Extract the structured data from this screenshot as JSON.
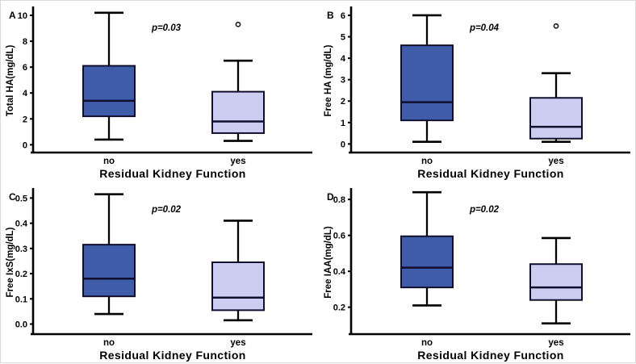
{
  "figure": {
    "background": "#ffffff",
    "frame_color": "#d9d9d9",
    "axis_color": "#000000",
    "box_border_color": "#10102e",
    "median_color": "#10102e",
    "no_fill": "#3f5ca8",
    "yes_fill": "#cdcdf2",
    "x_axis_title": "Residual Kidney Function",
    "categories": [
      "no",
      "yes"
    ]
  },
  "chart_data": [
    {
      "type": "box",
      "panel": "A",
      "ylabel": "Total HA(mg/dL)",
      "xlabel": "Residual Kidney Function",
      "p_label": "p=0.03",
      "categories": [
        "no",
        "yes"
      ],
      "ylim": [
        -0.6,
        10.5
      ],
      "ytick_values": [
        0,
        2,
        4,
        6,
        8,
        10
      ],
      "ytick_labels": [
        "0",
        "2",
        "4",
        "6",
        "8",
        "10"
      ],
      "grid": false,
      "series": [
        {
          "name": "no",
          "fill": "#3f5ca8",
          "low": 0.4,
          "q1": 2.2,
          "median": 3.4,
          "q3": 6.1,
          "high": 10.2,
          "outliers": []
        },
        {
          "name": "yes",
          "fill": "#cdcdf2",
          "low": 0.3,
          "q1": 0.9,
          "median": 1.8,
          "q3": 4.1,
          "high": 6.5,
          "outliers": [
            9.3
          ]
        }
      ]
    },
    {
      "type": "box",
      "panel": "B",
      "ylabel": "Free HA (mg/dL)",
      "xlabel": "Residual Kidney Function",
      "p_label": "p=0.04",
      "categories": [
        "no",
        "yes"
      ],
      "ylim": [
        -0.4,
        6.3
      ],
      "ytick_values": [
        0,
        1,
        2,
        3,
        4,
        5,
        6
      ],
      "ytick_labels": [
        "0",
        "1",
        "2",
        "3",
        "4",
        "5",
        "6"
      ],
      "grid": false,
      "series": [
        {
          "name": "no",
          "fill": "#3f5ca8",
          "low": 0.1,
          "q1": 1.1,
          "median": 1.95,
          "q3": 4.6,
          "high": 6.0,
          "outliers": []
        },
        {
          "name": "yes",
          "fill": "#cdcdf2",
          "low": 0.1,
          "q1": 0.25,
          "median": 0.8,
          "q3": 2.15,
          "high": 3.3,
          "outliers": [
            5.5
          ]
        }
      ]
    },
    {
      "type": "box",
      "panel": "C",
      "ylabel": "Free IxS(mg/dL)",
      "xlabel": "Residual Kidney Function",
      "p_label": "p=0.02",
      "categories": [
        "no",
        "yes"
      ],
      "ylim": [
        -0.04,
        0.53
      ],
      "ytick_values": [
        0.0,
        0.1,
        0.2,
        0.3,
        0.4,
        0.5
      ],
      "ytick_labels": [
        "0.0",
        "0.1",
        "0.2",
        "0.3",
        "0.4",
        "0.5"
      ],
      "grid": false,
      "series": [
        {
          "name": "no",
          "fill": "#3f5ca8",
          "low": 0.04,
          "q1": 0.11,
          "median": 0.18,
          "q3": 0.315,
          "high": 0.515,
          "outliers": []
        },
        {
          "name": "yes",
          "fill": "#cdcdf2",
          "low": 0.015,
          "q1": 0.055,
          "median": 0.105,
          "q3": 0.245,
          "high": 0.41,
          "outliers": []
        }
      ]
    },
    {
      "type": "box",
      "panel": "D",
      "ylabel": "Free IAA(mg/dL)",
      "xlabel": "Residual Kidney Function",
      "p_label": "p=0.02",
      "categories": [
        "no",
        "yes"
      ],
      "ylim": [
        0.05,
        0.85
      ],
      "ytick_values": [
        0.2,
        0.4,
        0.6,
        0.8
      ],
      "ytick_labels": [
        "0.2",
        "0.4",
        "0.6",
        "0.8"
      ],
      "grid": false,
      "series": [
        {
          "name": "no",
          "fill": "#3f5ca8",
          "low": 0.21,
          "q1": 0.31,
          "median": 0.42,
          "q3": 0.595,
          "high": 0.84,
          "outliers": []
        },
        {
          "name": "yes",
          "fill": "#cdcdf2",
          "low": 0.11,
          "q1": 0.24,
          "median": 0.31,
          "q3": 0.44,
          "high": 0.585,
          "outliers": []
        }
      ]
    }
  ]
}
